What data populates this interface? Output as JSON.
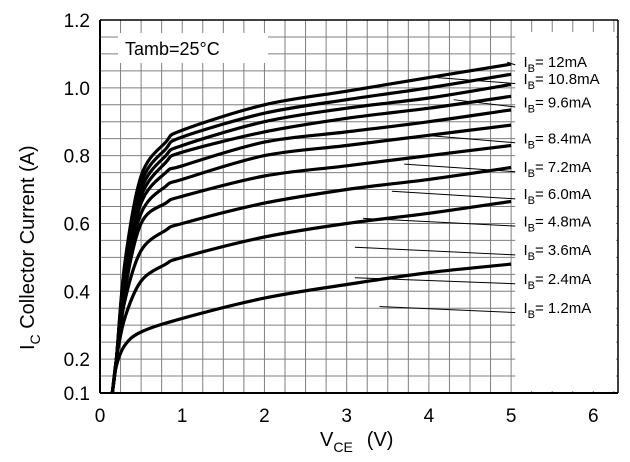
{
  "chart_data": {
    "type": "line",
    "x_label": {
      "main": "V",
      "sub": "CE",
      "unit": "(V)"
    },
    "y_label": {
      "main": "I",
      "sub": "C",
      "rest": " Collector Current (A)"
    },
    "annotation": "Tamb=25°C",
    "xlim": [
      0,
      6.3
    ],
    "ylim": [
      0.1,
      1.2
    ],
    "x_ticks": [
      "0",
      "1",
      "2",
      "3",
      "4",
      "5",
      "6"
    ],
    "y_ticks": [
      {
        "value": 0.1,
        "label": "0.1"
      },
      {
        "value": 0.2,
        "label": "0.2"
      },
      {
        "value": 0.4,
        "label": "0.4"
      },
      {
        "value": 0.6,
        "label": "0.6"
      },
      {
        "value": 0.8,
        "label": "0.8"
      },
      {
        "value": 1.0,
        "label": "1.0"
      },
      {
        "value": 1.2,
        "label": "1.2"
      }
    ],
    "grid": true,
    "series": [
      {
        "name_main": "I",
        "name_sub": "B",
        "name_rest": "= 1.2mA",
        "points": [
          [
            0.15,
            0.1
          ],
          [
            0.2,
            0.18
          ],
          [
            0.3,
            0.24
          ],
          [
            0.5,
            0.28
          ],
          [
            1,
            0.32
          ],
          [
            2,
            0.38
          ],
          [
            3,
            0.42
          ],
          [
            4,
            0.455
          ],
          [
            5,
            0.48
          ]
        ]
      },
      {
        "name_main": "I",
        "name_sub": "B",
        "name_rest": "= 2.4mA",
        "points": [
          [
            0.15,
            0.1
          ],
          [
            0.2,
            0.2
          ],
          [
            0.3,
            0.32
          ],
          [
            0.5,
            0.43
          ],
          [
            0.8,
            0.48
          ],
          [
            1,
            0.5
          ],
          [
            2,
            0.56
          ],
          [
            3,
            0.6
          ],
          [
            4,
            0.63
          ],
          [
            5,
            0.665
          ]
        ]
      },
      {
        "name_main": "I",
        "name_sub": "B",
        "name_rest": "= 3.6mA",
        "points": [
          [
            0.15,
            0.1
          ],
          [
            0.2,
            0.2
          ],
          [
            0.3,
            0.37
          ],
          [
            0.5,
            0.52
          ],
          [
            0.8,
            0.58
          ],
          [
            1,
            0.6
          ],
          [
            2,
            0.66
          ],
          [
            3,
            0.7
          ],
          [
            4,
            0.73
          ],
          [
            5,
            0.765
          ]
        ]
      },
      {
        "name_main": "I",
        "name_sub": "B",
        "name_rest": "= 4.8mA",
        "points": [
          [
            0.15,
            0.1
          ],
          [
            0.2,
            0.2
          ],
          [
            0.3,
            0.4
          ],
          [
            0.5,
            0.6
          ],
          [
            0.8,
            0.66
          ],
          [
            1,
            0.68
          ],
          [
            2,
            0.74
          ],
          [
            3,
            0.77
          ],
          [
            4,
            0.8
          ],
          [
            5,
            0.83
          ]
        ]
      },
      {
        "name_main": "I",
        "name_sub": "B",
        "name_rest": "= 6.0mA",
        "points": [
          [
            0.15,
            0.1
          ],
          [
            0.2,
            0.2
          ],
          [
            0.3,
            0.42
          ],
          [
            0.5,
            0.63
          ],
          [
            0.8,
            0.71
          ],
          [
            1,
            0.73
          ],
          [
            2,
            0.8
          ],
          [
            3,
            0.83
          ],
          [
            4,
            0.86
          ],
          [
            5,
            0.89
          ]
        ]
      },
      {
        "name_main": "I",
        "name_sub": "B",
        "name_rest": "= 7.2mA",
        "points": [
          [
            0.15,
            0.1
          ],
          [
            0.2,
            0.2
          ],
          [
            0.3,
            0.44
          ],
          [
            0.5,
            0.66
          ],
          [
            0.8,
            0.75
          ],
          [
            1,
            0.77
          ],
          [
            2,
            0.84
          ],
          [
            3,
            0.87
          ],
          [
            4,
            0.9
          ],
          [
            5,
            0.935
          ]
        ]
      },
      {
        "name_main": "I",
        "name_sub": "B",
        "name_rest": "= 8.4mA",
        "points": [
          [
            0.15,
            0.1
          ],
          [
            0.2,
            0.2
          ],
          [
            0.3,
            0.45
          ],
          [
            0.5,
            0.68
          ],
          [
            0.8,
            0.78
          ],
          [
            1,
            0.81
          ],
          [
            2,
            0.87
          ],
          [
            3,
            0.91
          ],
          [
            4,
            0.94
          ],
          [
            5,
            0.975
          ]
        ]
      },
      {
        "name_main": "I",
        "name_sub": "B",
        "name_rest": "= 9.6mA",
        "points": [
          [
            0.15,
            0.1
          ],
          [
            0.2,
            0.2
          ],
          [
            0.3,
            0.46
          ],
          [
            0.5,
            0.7
          ],
          [
            0.8,
            0.8
          ],
          [
            1,
            0.83
          ],
          [
            2,
            0.9
          ],
          [
            3,
            0.94
          ],
          [
            4,
            0.97
          ],
          [
            5,
            1.01
          ]
        ]
      },
      {
        "name_main": "I",
        "name_sub": "B",
        "name_rest": "= 10.8mA",
        "points": [
          [
            0.15,
            0.1
          ],
          [
            0.2,
            0.2
          ],
          [
            0.3,
            0.47
          ],
          [
            0.5,
            0.72
          ],
          [
            0.8,
            0.82
          ],
          [
            1,
            0.855
          ],
          [
            2,
            0.925
          ],
          [
            3,
            0.965
          ],
          [
            4,
            1.0
          ],
          [
            5,
            1.04
          ]
        ]
      },
      {
        "name_main": "I",
        "name_sub": "B",
        "name_rest": "= 12mA",
        "points": [
          [
            0.15,
            0.1
          ],
          [
            0.2,
            0.2
          ],
          [
            0.3,
            0.48
          ],
          [
            0.5,
            0.74
          ],
          [
            0.8,
            0.84
          ],
          [
            1,
            0.875
          ],
          [
            2,
            0.95
          ],
          [
            3,
            0.99
          ],
          [
            4,
            1.03
          ],
          [
            5,
            1.07
          ]
        ]
      }
    ],
    "labels": [
      {
        "series": 9,
        "anchor_x": 4.95,
        "end_y": 1.07,
        "text_y": 1.085
      },
      {
        "series": 8,
        "anchor_x": 4.1,
        "end_y": 1.03,
        "text_y": 1.035
      },
      {
        "series": 7,
        "anchor_x": 4.3,
        "end_y": 0.965,
        "text_y": 0.965
      },
      {
        "series": 6,
        "anchor_x": 3.95,
        "end_y": 0.86,
        "text_y": 0.86
      },
      {
        "series": 5,
        "anchor_x": 3.7,
        "end_y": 0.775,
        "text_y": 0.775
      },
      {
        "series": 4,
        "anchor_x": 3.55,
        "end_y": 0.695,
        "text_y": 0.695
      },
      {
        "series": 3,
        "anchor_x": 3.2,
        "end_y": 0.615,
        "text_y": 0.615
      },
      {
        "series": 2,
        "anchor_x": 3.1,
        "end_y": 0.53,
        "text_y": 0.53
      },
      {
        "series": 1,
        "anchor_x": 3.1,
        "end_y": 0.44,
        "text_y": 0.445
      },
      {
        "series": 0,
        "anchor_x": 3.4,
        "end_y": 0.355,
        "text_y": 0.36
      }
    ],
    "label_text_x": 5.15,
    "colors": {
      "curve": "#000000",
      "grid": "#7f7f7f",
      "axis": "#000000"
    }
  }
}
